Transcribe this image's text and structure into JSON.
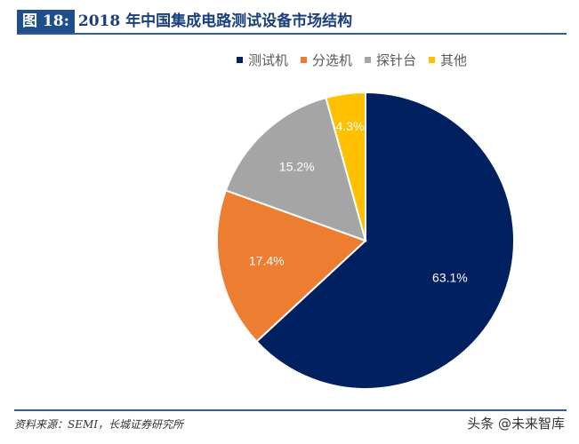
{
  "header": {
    "figure_label": "图 18:",
    "title": "2018 年中国集成电路测试设备市场结构"
  },
  "legend": [
    {
      "label": "测试机",
      "color": "#002060"
    },
    {
      "label": "分选机",
      "color": "#ed7d31"
    },
    {
      "label": "探针台",
      "color": "#a5a5a5"
    },
    {
      "label": "其他",
      "color": "#ffc000"
    }
  ],
  "footer": {
    "source": "资料来源：SEMI，长城证券研究所",
    "watermark": "头条 @未来智库"
  },
  "chart_data": {
    "type": "pie",
    "title": "2018 年中国集成电路测试设备市场结构",
    "categories": [
      "测试机",
      "分选机",
      "探针台",
      "其他"
    ],
    "values": [
      63.1,
      17.4,
      15.2,
      4.3
    ],
    "labels": [
      "63.1%",
      "17.4%",
      "15.2%",
      "4.3%"
    ],
    "colors": [
      "#002060",
      "#ed7d31",
      "#a5a5a5",
      "#ffc000"
    ],
    "legend_position": "top",
    "start_angle_deg": 0,
    "direction": "clockwise"
  }
}
